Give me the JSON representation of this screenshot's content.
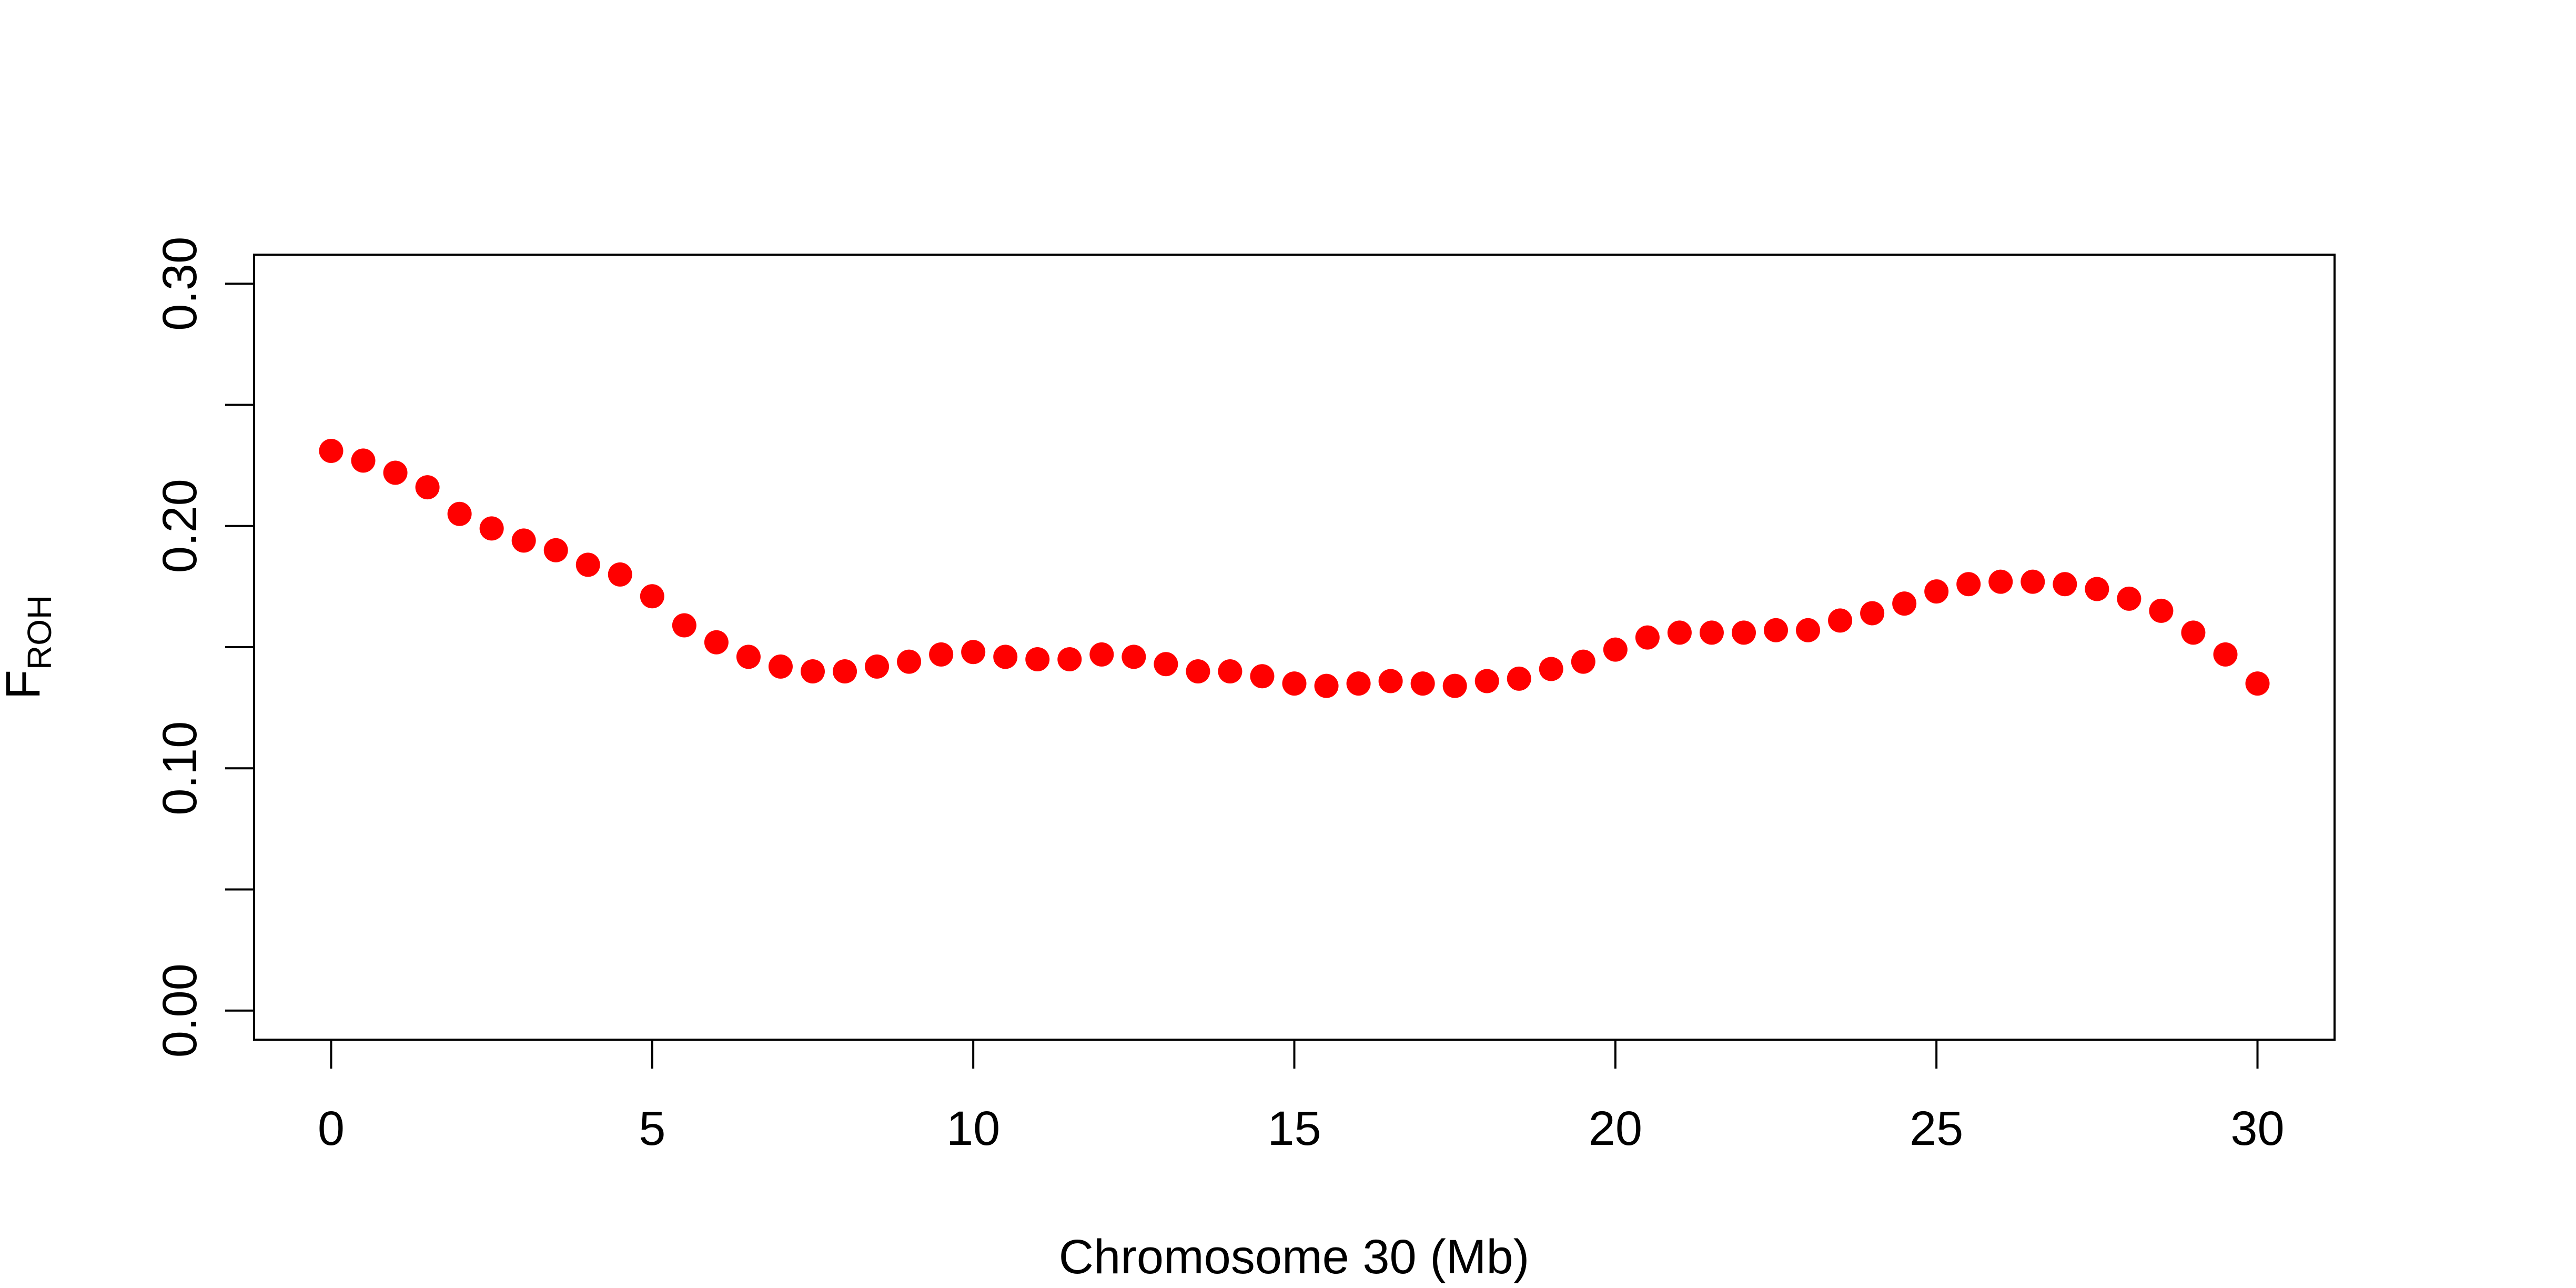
{
  "chart_data": {
    "type": "scatter",
    "title": "",
    "xlabel": "Chromosome 30 (Mb)",
    "ylabel": {
      "main": "F",
      "subscript": "ROH"
    },
    "xlim": [
      -1.2,
      31.2
    ],
    "ylim": [
      -0.012,
      0.312
    ],
    "xticks": [
      0,
      5,
      10,
      15,
      20,
      25,
      30
    ],
    "xtick_labels": [
      "0",
      "5",
      "10",
      "15",
      "20",
      "25",
      "30"
    ],
    "yticks": [
      0.0,
      0.05,
      0.1,
      0.15,
      0.2,
      0.25,
      0.3
    ],
    "ytick_labels": [
      "0.00",
      "",
      "0.10",
      "",
      "0.20",
      "",
      "0.30"
    ],
    "grid": false,
    "legend": "none",
    "point_color": "#ff0000",
    "series": [
      {
        "x": [
          0,
          0.5,
          1,
          1.5,
          2,
          2.5,
          3,
          3.5,
          4,
          4.5,
          5,
          5.5,
          6,
          6.5,
          7,
          7.5,
          8,
          8.5,
          9,
          9.5,
          10,
          10.5,
          11,
          11.5,
          12,
          12.5,
          13,
          13.5,
          14,
          14.5,
          15,
          15.5,
          16,
          16.5,
          17,
          17.5,
          18,
          18.5,
          19,
          19.5,
          20,
          20.5,
          21,
          21.5,
          22,
          22.5,
          23,
          23.5,
          24,
          24.5,
          25,
          25.5,
          26,
          26.5,
          27,
          27.5,
          28,
          28.5,
          29,
          29.5,
          30
        ],
        "y": [
          0.231,
          0.227,
          0.222,
          0.216,
          0.205,
          0.199,
          0.194,
          0.19,
          0.184,
          0.18,
          0.171,
          0.159,
          0.152,
          0.146,
          0.142,
          0.14,
          0.14,
          0.142,
          0.144,
          0.147,
          0.148,
          0.146,
          0.145,
          0.145,
          0.147,
          0.146,
          0.143,
          0.14,
          0.14,
          0.138,
          0.135,
          0.134,
          0.135,
          0.136,
          0.135,
          0.134,
          0.136,
          0.137,
          0.141,
          0.144,
          0.149,
          0.154,
          0.156,
          0.156,
          0.156,
          0.157,
          0.157,
          0.161,
          0.164,
          0.168,
          0.173,
          0.176,
          0.177,
          0.177,
          0.176,
          0.174,
          0.17,
          0.165,
          0.156,
          0.147,
          0.135
        ]
      }
    ]
  }
}
